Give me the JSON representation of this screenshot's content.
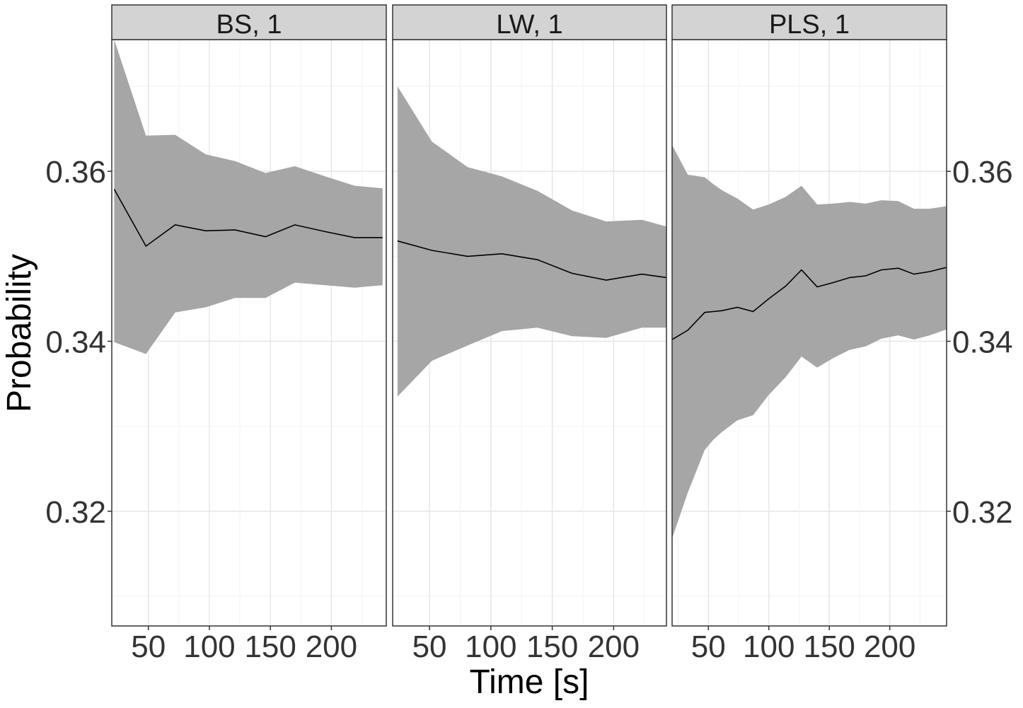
{
  "chart_data": {
    "type": "area",
    "xlabel": "Time [s]",
    "ylabel": "Probability",
    "ylim": [
      0.3065,
      0.3755
    ],
    "y_ticks": [
      0.32,
      0.34,
      0.36
    ],
    "y_tick_labels": [
      "0.32",
      "0.34",
      "0.36"
    ],
    "y_minor_ticks": [
      0.31,
      0.33,
      0.35,
      0.37
    ],
    "y_axis_left_on_first_panel": true,
    "y_axis_right_on_last_panel": true,
    "x_tick_labels": [
      "50",
      "100",
      "150",
      "200"
    ],
    "grid": true,
    "ribbon_color": "#a6a6a6",
    "line_color": "#000000",
    "strip_color": "#d3d3d3",
    "panels": [
      {
        "title": "BS, 1",
        "xlim": [
          20,
          245
        ],
        "x_ticks": [
          50,
          100,
          150,
          200
        ],
        "x_minor_ticks": [
          25,
          75,
          125,
          175,
          225
        ],
        "series": [
          {
            "x": [
              22,
              48,
              72,
              97,
              121,
              146,
              170,
              195,
              219,
              242
            ],
            "mean": [
              0.3579,
              0.3512,
              0.3537,
              0.353,
              0.3531,
              0.3523,
              0.3537,
              0.3529,
              0.3522,
              0.3522
            ],
            "lower": [
              0.3399,
              0.3385,
              0.3434,
              0.344,
              0.3451,
              0.3451,
              0.3469,
              0.3466,
              0.3463,
              0.3466
            ],
            "upper": [
              0.3755,
              0.3642,
              0.3643,
              0.362,
              0.3612,
              0.3598,
              0.3606,
              0.3594,
              0.3583,
              0.358
            ]
          }
        ]
      },
      {
        "title": "LW, 1",
        "xlim": [
          20,
          243
        ],
        "x_ticks": [
          50,
          100,
          150,
          200
        ],
        "x_minor_ticks": [
          25,
          75,
          125,
          175,
          225
        ],
        "series": [
          {
            "x": [
              24,
              52,
              81,
              109,
              138,
              166,
              194,
              223,
              243
            ],
            "mean": [
              0.3518,
              0.3507,
              0.35,
              0.3503,
              0.3496,
              0.348,
              0.3472,
              0.3479,
              0.3475
            ],
            "lower": [
              0.3335,
              0.3377,
              0.3395,
              0.3412,
              0.3416,
              0.3406,
              0.3404,
              0.3416,
              0.3416
            ],
            "upper": [
              0.37,
              0.3635,
              0.3605,
              0.3594,
              0.3577,
              0.3554,
              0.3541,
              0.3543,
              0.3535
            ]
          }
        ]
      },
      {
        "title": "PLS, 1",
        "xlim": [
          20,
          247
        ],
        "x_ticks": [
          50,
          100,
          150,
          200
        ],
        "x_minor_ticks": [
          25,
          75,
          125,
          175,
          225
        ],
        "series": [
          {
            "x": [
              20,
              33,
              47,
              54,
              61,
              74,
              87,
              100,
              114,
              127,
              140,
              153,
              167,
              180,
              193,
              207,
              220,
              233,
              247
            ],
            "mean": [
              0.3402,
              0.3413,
              0.3434,
              0.3435,
              0.3436,
              0.344,
              0.3435,
              0.345,
              0.3465,
              0.3484,
              0.3464,
              0.3469,
              0.3475,
              0.3477,
              0.3484,
              0.3486,
              0.3479,
              0.3482,
              0.3487
            ],
            "lower": [
              0.3168,
              0.3222,
              0.3272,
              0.3284,
              0.3293,
              0.3307,
              0.3313,
              0.3337,
              0.3358,
              0.3382,
              0.3369,
              0.338,
              0.339,
              0.3394,
              0.3403,
              0.3407,
              0.3402,
              0.3407,
              0.3414
            ],
            "upper": [
              0.3631,
              0.3596,
              0.3593,
              0.3585,
              0.3578,
              0.3568,
              0.3555,
              0.3561,
              0.357,
              0.3583,
              0.3561,
              0.3562,
              0.3564,
              0.3562,
              0.3566,
              0.3565,
              0.3556,
              0.3556,
              0.3559
            ]
          }
        ]
      }
    ]
  }
}
